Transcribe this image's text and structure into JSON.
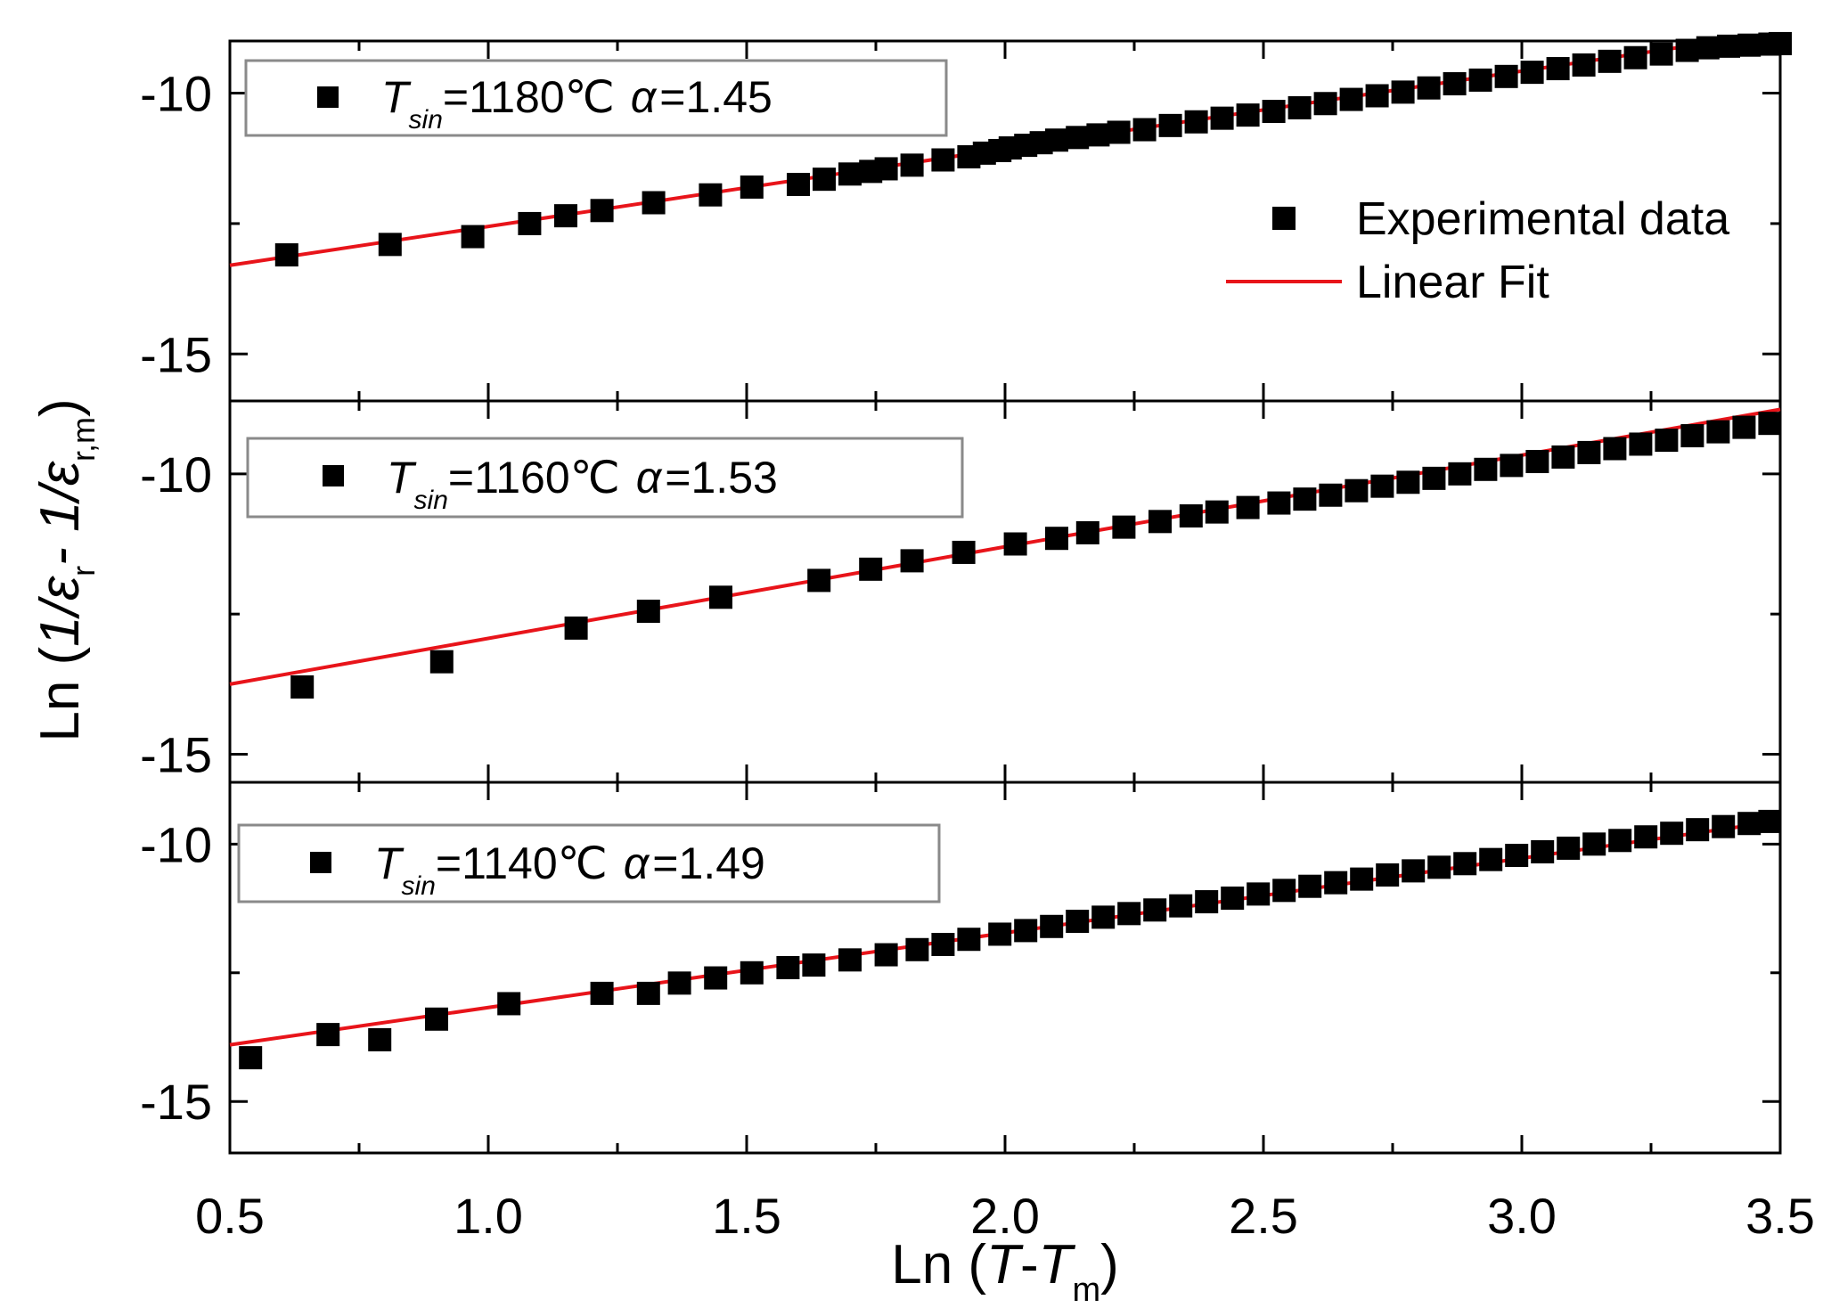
{
  "chart_data": {
    "type": "scatter",
    "xlabel": {
      "prefix": "Ln (",
      "var": "T",
      "dash": "-",
      "var2": "T",
      "sub": "m",
      "suffix": ")"
    },
    "ylabel": {
      "prefix": "Ln (",
      "one1": "1/",
      "eps1": "ε",
      "sub1": "r",
      "mid": "- 1/",
      "eps2": "ε",
      "sub2": "r,m",
      "suffix": ")"
    },
    "xlim": [
      0.5,
      3.5
    ],
    "xticks": [
      "0.5",
      "1.0",
      "1.5",
      "2.0",
      "2.5",
      "3.0",
      "3.5"
    ],
    "legend": {
      "location": "top-right",
      "items": [
        {
          "label": "Experimental data",
          "marker": "square",
          "color": "#000000"
        },
        {
          "label": "Linear Fit",
          "marker": "line",
          "color": "#e8141a"
        }
      ]
    },
    "panels": [
      {
        "id": "panel-1180",
        "label": {
          "T": "T",
          "sub": "sin",
          "temp": "=1180℃",
          "alpha": "α",
          "alpha_val": "=1.45"
        },
        "ylim": [
          -15.9,
          -9.0
        ],
        "yticks": [
          "-10",
          "-15"
        ],
        "yticks_values": [
          -10,
          -15
        ],
        "fit": {
          "x0": 0.5,
          "y0": -13.3,
          "x1": 3.32,
          "y1": -9.1
        },
        "points": {
          "x": [
            0.61,
            0.81,
            0.97,
            1.08,
            1.15,
            1.22,
            1.32,
            1.43,
            1.51,
            1.6,
            1.65,
            1.7,
            1.74,
            1.77,
            1.82,
            1.88,
            1.93,
            1.96,
            1.99,
            2.01,
            2.04,
            2.07,
            2.1,
            2.14,
            2.18,
            2.22,
            2.27,
            2.32,
            2.37,
            2.42,
            2.47,
            2.52,
            2.57,
            2.62,
            2.67,
            2.72,
            2.77,
            2.82,
            2.87,
            2.92,
            2.97,
            3.02,
            3.07,
            3.12,
            3.17,
            3.22,
            3.27,
            3.32,
            3.36,
            3.4,
            3.44,
            3.48,
            3.5
          ],
          "y": [
            -13.1,
            -12.9,
            -12.75,
            -12.5,
            -12.35,
            -12.25,
            -12.1,
            -11.95,
            -11.8,
            -11.75,
            -11.65,
            -11.55,
            -11.5,
            -11.45,
            -11.38,
            -11.28,
            -11.22,
            -11.15,
            -11.1,
            -11.05,
            -11.0,
            -10.95,
            -10.9,
            -10.85,
            -10.8,
            -10.75,
            -10.7,
            -10.62,
            -10.55,
            -10.48,
            -10.42,
            -10.35,
            -10.28,
            -10.2,
            -10.12,
            -10.05,
            -9.98,
            -9.9,
            -9.82,
            -9.75,
            -9.68,
            -9.6,
            -9.53,
            -9.46,
            -9.39,
            -9.32,
            -9.25,
            -9.18,
            -9.13,
            -9.1,
            -9.08,
            -9.06,
            -9.05
          ]
        }
      },
      {
        "id": "panel-1160",
        "label": {
          "T": "T",
          "sub": "sin",
          "temp": "=1160℃",
          "alpha": "α",
          "alpha_val": "=1.53"
        },
        "ylim": [
          -15.5,
          -8.7
        ],
        "yticks": [
          "-10",
          "-15"
        ],
        "yticks_values": [
          -10,
          -15
        ],
        "fit": {
          "x0": 0.5,
          "y0": -13.75,
          "x1": 3.5,
          "y1": -8.85
        },
        "points": {
          "x": [
            0.64,
            0.91,
            1.17,
            1.31,
            1.45,
            1.64,
            1.74,
            1.82,
            1.92,
            2.02,
            2.1,
            2.16,
            2.23,
            2.3,
            2.36,
            2.41,
            2.47,
            2.53,
            2.58,
            2.63,
            2.68,
            2.73,
            2.78,
            2.83,
            2.88,
            2.93,
            2.98,
            3.03,
            3.08,
            3.13,
            3.18,
            3.23,
            3.28,
            3.33,
            3.38,
            3.43,
            3.48
          ],
          "y": [
            -13.8,
            -13.35,
            -12.75,
            -12.45,
            -12.2,
            -11.9,
            -11.7,
            -11.55,
            -11.4,
            -11.25,
            -11.15,
            -11.05,
            -10.95,
            -10.85,
            -10.75,
            -10.68,
            -10.6,
            -10.52,
            -10.45,
            -10.38,
            -10.3,
            -10.22,
            -10.15,
            -10.08,
            -10.0,
            -9.92,
            -9.85,
            -9.78,
            -9.7,
            -9.62,
            -9.55,
            -9.47,
            -9.4,
            -9.32,
            -9.25,
            -9.17,
            -9.1
          ]
        }
      },
      {
        "id": "panel-1140",
        "label": {
          "T": "T",
          "sub": "sin",
          "temp": "=1140℃",
          "alpha": "α",
          "alpha_val": "=1.49"
        },
        "ylim": [
          -16.0,
          -8.8
        ],
        "yticks": [
          "-10",
          "-15"
        ],
        "yticks_values": [
          -10,
          -15
        ],
        "fit": {
          "x0": 0.5,
          "y0": -13.9,
          "x1": 3.5,
          "y1": -9.55
        },
        "points": {
          "x": [
            0.54,
            0.69,
            0.79,
            0.9,
            1.04,
            1.22,
            1.31,
            1.37,
            1.44,
            1.51,
            1.58,
            1.63,
            1.7,
            1.77,
            1.83,
            1.88,
            1.93,
            1.99,
            2.04,
            2.09,
            2.14,
            2.19,
            2.24,
            2.29,
            2.34,
            2.39,
            2.44,
            2.49,
            2.54,
            2.59,
            2.64,
            2.69,
            2.74,
            2.79,
            2.84,
            2.89,
            2.94,
            2.99,
            3.04,
            3.09,
            3.14,
            3.19,
            3.24,
            3.29,
            3.34,
            3.39,
            3.44,
            3.48
          ],
          "y": [
            -14.15,
            -13.7,
            -13.8,
            -13.4,
            -13.1,
            -12.9,
            -12.9,
            -12.7,
            -12.6,
            -12.5,
            -12.4,
            -12.35,
            -12.25,
            -12.15,
            -12.05,
            -11.95,
            -11.85,
            -11.75,
            -11.68,
            -11.6,
            -11.5,
            -11.42,
            -11.35,
            -11.28,
            -11.2,
            -11.12,
            -11.05,
            -10.97,
            -10.9,
            -10.82,
            -10.75,
            -10.68,
            -10.6,
            -10.52,
            -10.45,
            -10.38,
            -10.3,
            -10.22,
            -10.15,
            -10.08,
            -10.0,
            -9.93,
            -9.86,
            -9.79,
            -9.72,
            -9.66,
            -9.6,
            -9.56
          ]
        }
      }
    ]
  }
}
